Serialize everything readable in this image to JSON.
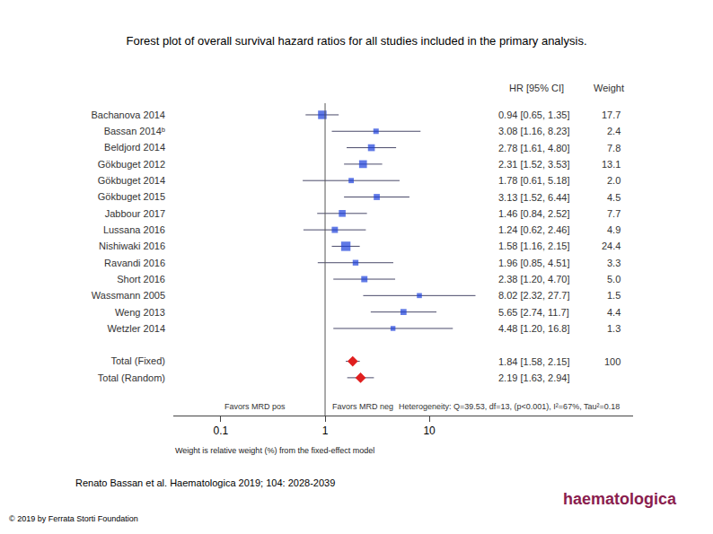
{
  "chart_data": {
    "type": "forest",
    "title": "Forest plot of overall survival hazard ratios for all studies included in the primary analysis.",
    "columns": [
      "HR [95% CI]",
      "Weight"
    ],
    "log": "x",
    "xlim": [
      0.035,
      900
    ],
    "xticks": [
      0.1,
      1,
      10
    ],
    "reference": 1,
    "studies": {
      "marker": "square",
      "color": "#1d40dc",
      "categories": [
        "Bachanova 2014",
        "Bassan 2014ᵇ",
        "Beldjord 2014",
        "Gökbuget 2012",
        "Gökbuget 2014",
        "Gökbuget 2015",
        "Jabbour 2017",
        "Lussana 2016",
        "Nishiwaki 2016",
        "Ravandi 2016",
        "Short 2016",
        "Wassmann 2005",
        "Weng 2013",
        "Wetzler 2014"
      ],
      "values": [
        0.94,
        3.08,
        2.78,
        2.31,
        1.78,
        3.13,
        1.46,
        1.24,
        1.58,
        1.96,
        2.38,
        8.02,
        5.65,
        4.48
      ],
      "ci_low": [
        0.65,
        1.16,
        1.61,
        1.52,
        0.61,
        1.52,
        0.84,
        0.62,
        1.16,
        0.85,
        1.2,
        2.32,
        2.74,
        1.2
      ],
      "ci_high": [
        1.35,
        8.23,
        4.8,
        3.53,
        5.18,
        6.44,
        2.52,
        2.46,
        2.15,
        4.51,
        4.7,
        27.7,
        11.7,
        16.8
      ],
      "value_labels": [
        "0.94 [0.65, 1.35]",
        "3.08 [1.16, 8.23]",
        "2.78 [1.61, 4.80]",
        "2.31 [1.52, 3.53]",
        "1.78 [0.61, 5.18]",
        "3.13 [1.52, 6.44]",
        "1.46 [0.84, 2.52]",
        "1.24 [0.62, 2.46]",
        "1.58 [1.16, 2.15]",
        "1.96 [0.85, 4.51]",
        "2.38 [1.20, 4.70]",
        "8.02 [2.32, 27.7]",
        "5.65 [2.74, 11.7]",
        "4.48 [1.20, 16.8]"
      ],
      "weights": [
        17.7,
        2.4,
        7.8,
        13.1,
        2.0,
        4.5,
        7.7,
        4.9,
        24.4,
        3.3,
        5.0,
        1.5,
        4.4,
        1.3
      ],
      "weight_labels": [
        "17.7",
        "2.4",
        "7.8",
        "13.1",
        "2.0",
        "4.5",
        "7.7",
        "4.9",
        "24.4",
        "3.3",
        "5.0",
        "1.5",
        "4.4",
        "1.3"
      ]
    },
    "totals": {
      "marker": "diamond",
      "color": "#e01f1f",
      "categories": [
        "Total (Fixed)",
        "Total (Random)"
      ],
      "values": [
        1.84,
        2.19
      ],
      "ci_low": [
        1.58,
        1.63
      ],
      "ci_high": [
        2.15,
        2.94
      ],
      "value_labels": [
        "1.84 [1.58, 2.15]",
        "2.19 [1.63, 2.94]"
      ],
      "weight_labels": [
        "100",
        null
      ]
    },
    "annotations": [
      "Favors MRD pos",
      "Favors MRD neg",
      "Heterogeneity: Q=39.53, df=13, (p<0.001), I²=67%, Tau²=0.18",
      "Weight is relative weight (%) from the fixed-effect model"
    ]
  },
  "page": {
    "source": "Renato Bassan et al. Haematologica 2019; 104: 2028-2039",
    "copyright": "© 2019 by Ferrata Storti Foundation",
    "logo": "haematologica"
  }
}
